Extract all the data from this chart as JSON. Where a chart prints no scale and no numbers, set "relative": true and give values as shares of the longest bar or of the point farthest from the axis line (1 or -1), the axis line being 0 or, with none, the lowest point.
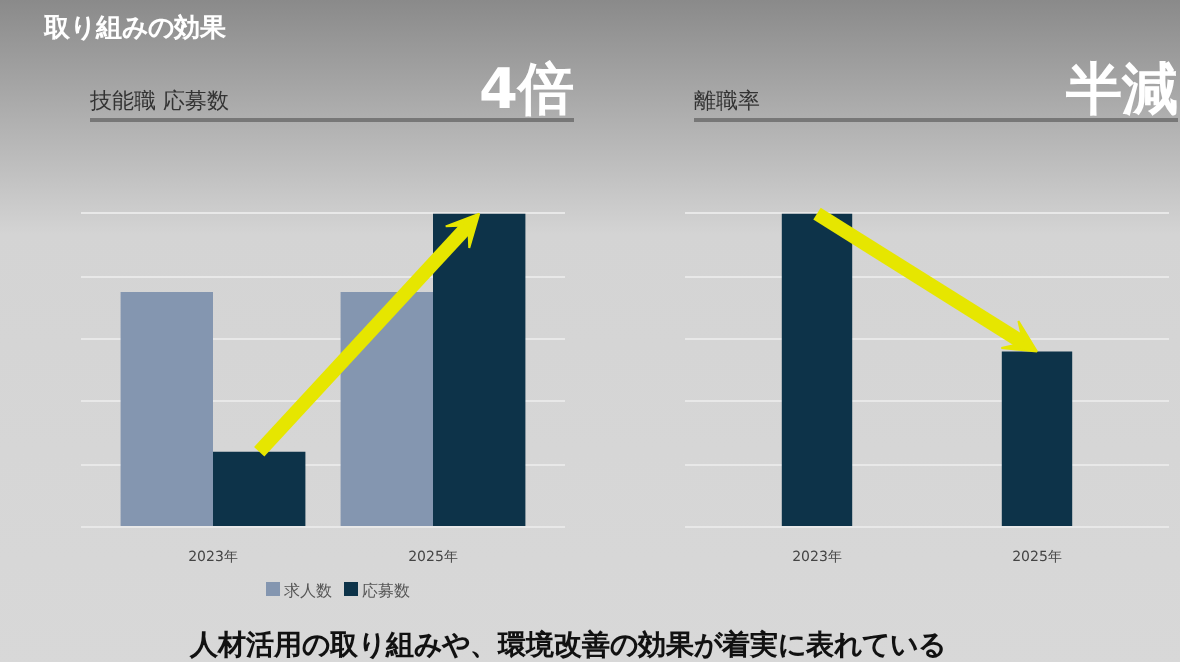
{
  "chart_data": [
    {
      "type": "bar",
      "title": "技能職 応募数",
      "categories": [
        "2023年",
        "2025年"
      ],
      "relative": true,
      "grid": "y",
      "legend": "bottom",
      "annotations": [
        "4倍",
        "取り組みの効果",
        "人材活用の取り組みや、環境改善の効果が着実に表れている"
      ],
      "series": [
        {
          "name": "求人数",
          "color": "#8496b0",
          "values": [
            0.75,
            0.75
          ]
        },
        {
          "name": "応募数",
          "color": "#0d3349",
          "values": [
            0.24,
            1
          ]
        }
      ]
    },
    {
      "type": "bar",
      "title": "離職率",
      "categories": [
        "2023年",
        "2025年"
      ],
      "relative": true,
      "grid": "y",
      "annotations": [
        "半減"
      ],
      "series": [
        {
          "color": "#0d3349",
          "values": [
            1,
            0.56
          ]
        }
      ]
    }
  ]
}
